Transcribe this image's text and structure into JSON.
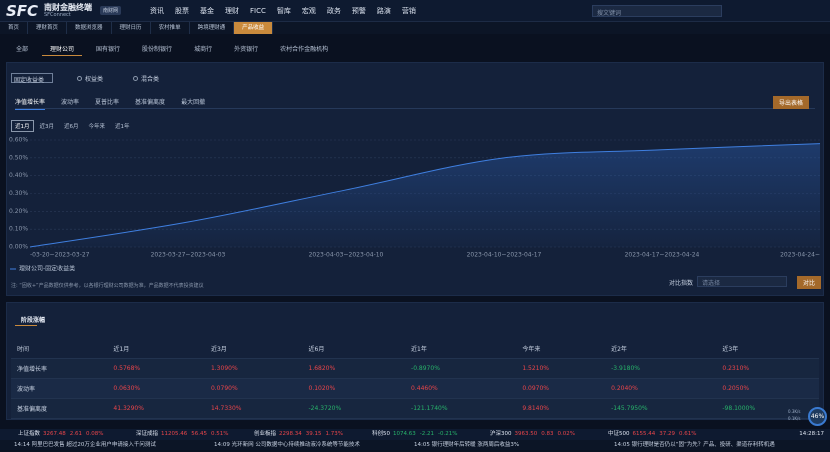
{
  "header": {
    "logo": "SFC",
    "brand": "南财金融终端",
    "brand_sub": "SFConnect",
    "badge": "南财网",
    "menu": [
      "资讯",
      "股票",
      "基金",
      "理财",
      "FICC",
      "智库",
      "宏观",
      "政务",
      "预警",
      "路演",
      "营销"
    ],
    "search": "搜文键词"
  },
  "tabs": {
    "items": [
      "首页",
      "理财首页",
      "数据浏览器",
      "理财日历",
      "农村推单",
      "跨境理财通",
      "产品收益"
    ],
    "active": 6
  },
  "institution_tabs": {
    "items": [
      "全部",
      "理财公司",
      "国有银行",
      "股份制银行",
      "城商行",
      "外资银行",
      "农村合作金融机构"
    ],
    "active": 1
  },
  "filter": {
    "select": "固定收益类",
    "radios": [
      "权益类",
      "混合类"
    ]
  },
  "metric_tabs": {
    "items": [
      "净值增长率",
      "波动率",
      "夏普比率",
      "基准偏离度",
      "最大回撤"
    ],
    "active": 0
  },
  "export_button": "导出表格",
  "period_tabs": {
    "items": [
      "近1月",
      "近3月",
      "近6月",
      "今年来",
      "近1年"
    ],
    "active": 0
  },
  "chart_data": {
    "type": "line",
    "categories": [
      "-03-20~2023-03-27",
      "2023-03-27~2023-04-03",
      "2023-04-03~2023-04-10",
      "2023-04-10~2023-04-17",
      "2023-04-17~2023-04-24",
      "2023-04-24~"
    ],
    "series": [
      {
        "name": "理财公司-固定收益类",
        "color": "#3f7fe0",
        "values": [
          0.0,
          0.14,
          0.32,
          0.5,
          0.545,
          0.58
        ]
      }
    ],
    "ylim": [
      0,
      0.6
    ],
    "yticks": [
      {
        "value": 0,
        "label": "0.00%"
      },
      {
        "value": 0.1,
        "label": "0.10%"
      },
      {
        "value": 0.2,
        "label": "0.20%"
      },
      {
        "value": 0.3,
        "label": "0.30%"
      },
      {
        "value": 0.4,
        "label": "0.40%"
      },
      {
        "value": 0.5,
        "label": "0.50%"
      },
      {
        "value": 0.6,
        "label": "0.60%"
      }
    ],
    "grid": true
  },
  "note": "注: “固收+”产品数据仅供参考，以各银行理财公司数据为准，产品数据不代表投资建议",
  "compare": {
    "label": "对比指数",
    "placeholder": "请选择",
    "button": "对比"
  },
  "table": {
    "title": "阶段涨幅",
    "columns": [
      "时间",
      "近1月",
      "近3月",
      "近6月",
      "近1年",
      "今年来",
      "近2年",
      "近3年"
    ],
    "rows": [
      [
        "净值增长率",
        "0.5768%",
        "1.3090%",
        "1.6820%",
        "-0.8970%",
        "1.5210%",
        "-3.9180%",
        "0.2310%"
      ],
      [
        "波动率",
        "0.0630%",
        "0.0790%",
        "0.1020%",
        "0.4460%",
        "0.0970%",
        "0.2040%",
        "0.2050%"
      ],
      [
        "基准偏离度",
        "41.3290%",
        "14.7330%",
        "-24.3720%",
        "-121.1740%",
        "9.8140%",
        "-145.7950%",
        "-98.1000%"
      ]
    ]
  },
  "ticker": {
    "indices": [
      {
        "name": "上证指数",
        "price": "3267.48",
        "change": "2.61",
        "pct": "0.08%"
      },
      {
        "name": "深证成指",
        "price": "11205.46",
        "change": "56.45",
        "pct": "0.51%"
      },
      {
        "name": "创业板指",
        "price": "2298.34",
        "change": "39.15",
        "pct": "1.73%"
      },
      {
        "name": "科创50",
        "price": "1074.63",
        "change": "-2.21",
        "pct": "-0.21%"
      },
      {
        "name": "沪深300",
        "price": "3963.50",
        "change": "0.83",
        "pct": "0.02%"
      },
      {
        "name": "中证500",
        "price": "6155.44",
        "change": "37.29",
        "pct": "0.61%"
      }
    ],
    "time": "14:28:17"
  },
  "news": [
    "14:14 阿里巴巴发售 超过20万企业用户申请接入千问测试",
    "14:09 光环新网 公司数据中心持续推动液冷系统等节能技术",
    "14:05 银行理财年后转暖 涨两周后收益3%",
    "14:05 银行理财是否仍以“固”为先？产品、投研、渠道存利转机遇"
  ],
  "widget": {
    "percent": "46%",
    "up": "0.3K/s",
    "down": "0.1K/s"
  }
}
